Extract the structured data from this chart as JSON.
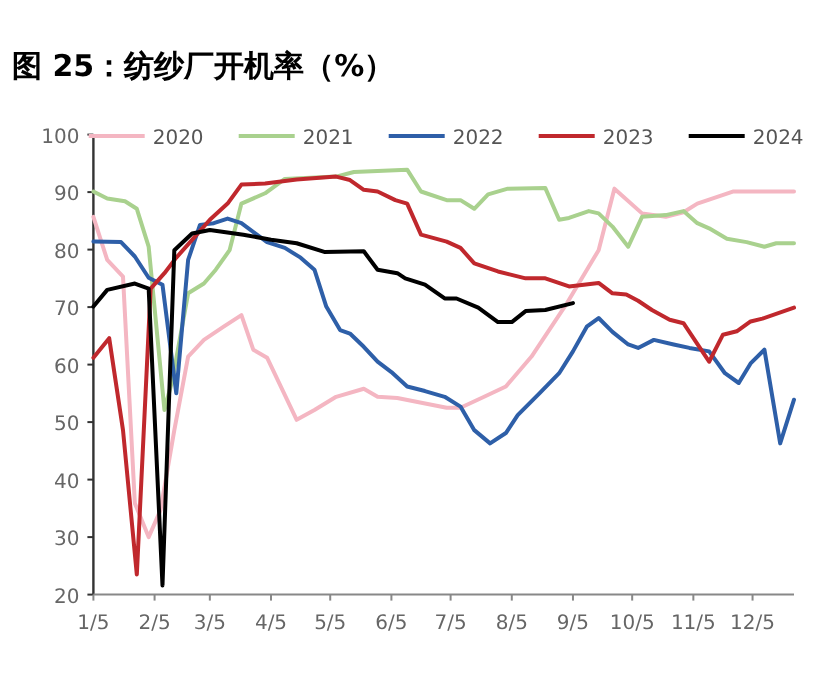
{
  "chart_data": {
    "type": "line",
    "title": "图 25：纺纱厂开机率（%）",
    "legend": "top",
    "grid": false,
    "marker": "none",
    "line_style": "solid",
    "xlim": [
      "--01-05",
      "--12-26"
    ],
    "xticks": [
      {
        "value": "--01-05",
        "label": "1/5"
      },
      {
        "value": "--02-05",
        "label": "2/5"
      },
      {
        "value": "--03-05",
        "label": "3/5"
      },
      {
        "value": "--04-05",
        "label": "4/5"
      },
      {
        "value": "--05-05",
        "label": "5/5"
      },
      {
        "value": "--06-05",
        "label": "6/5"
      },
      {
        "value": "--07-05",
        "label": "7/5"
      },
      {
        "value": "--08-05",
        "label": "8/5"
      },
      {
        "value": "--09-05",
        "label": "9/5"
      },
      {
        "value": "--10-05",
        "label": "10/5"
      },
      {
        "value": "--11-05",
        "label": "11/5"
      },
      {
        "value": "--12-05",
        "label": "12/5"
      }
    ],
    "ylim": [
      20,
      100
    ],
    "yticks": [
      20,
      30,
      40,
      50,
      60,
      70,
      80,
      90,
      100
    ],
    "series": [
      {
        "name": "2020",
        "color": "#f4b6c2",
        "x": [
          "--01-05",
          "--01-12",
          "--01-20",
          "--01-26",
          "--02-02",
          "--02-08",
          "--02-15",
          "--02-22",
          "--03-02",
          "--03-12",
          "--03-21",
          "--03-27",
          "--04-03",
          "--04-18",
          "--04-27",
          "--05-08",
          "--05-22",
          "--05-29",
          "--06-08",
          "--07-03",
          "--07-10",
          "--07-22",
          "--08-02",
          "--08-15",
          "--09-02",
          "--09-18",
          "--09-26",
          "--10-10",
          "--10-22",
          "--10-31",
          "--11-07",
          "--11-25",
          "--12-26"
        ],
        "values": [
          85.7,
          78.2,
          75.3,
          35.9,
          30,
          34.7,
          48.6,
          61.4,
          64.3,
          66.6,
          68.6,
          62.6,
          61.2,
          50.4,
          52.1,
          54.4,
          55.8,
          54.4,
          54.2,
          52.5,
          52.5,
          54.4,
          56.2,
          61.4,
          70.7,
          79.9,
          90.6,
          86.3,
          85.7,
          86.5,
          88,
          90.1,
          90.1
        ]
      },
      {
        "name": "2021",
        "color": "#a9d18e",
        "x": [
          "--01-05",
          "--01-12",
          "--01-21",
          "--01-27",
          "--02-02",
          "--02-10",
          "--02-14",
          "--02-22",
          "--03-02",
          "--03-08",
          "--03-15",
          "--03-21",
          "--04-02",
          "--04-12",
          "--05-08",
          "--05-17",
          "--06-13",
          "--06-20",
          "--07-03",
          "--07-10",
          "--07-17",
          "--07-24",
          "--08-03",
          "--08-22",
          "--08-29",
          "--09-03",
          "--09-13",
          "--09-18",
          "--09-25",
          "--10-03",
          "--10-10",
          "--10-22",
          "--10-31",
          "--11-07",
          "--11-13",
          "--11-22",
          "--12-02",
          "--12-11",
          "--12-17",
          "--12-26"
        ],
        "values": [
          90.1,
          88.9,
          88.4,
          87.1,
          80.5,
          52.1,
          57.3,
          72.4,
          74.1,
          76.5,
          79.9,
          88,
          89.8,
          92.3,
          92.7,
          93.5,
          93.9,
          90.1,
          88.6,
          88.6,
          87.1,
          89.6,
          90.6,
          90.7,
          85.2,
          85.5,
          86.7,
          86.3,
          84,
          80.5,
          85.7,
          86,
          86.7,
          84.6,
          83.7,
          81.9,
          81.3,
          80.5,
          81.1,
          81.1
        ]
      },
      {
        "name": "2022",
        "color": "#2e5fa8",
        "x": [
          "--01-05",
          "--01-19",
          "--01-26",
          "--02-02",
          "--02-09",
          "--02-16",
          "--02-22",
          "--02-28",
          "--03-07",
          "--03-14",
          "--03-21",
          "--04-03",
          "--04-12",
          "--04-20",
          "--04-27",
          "--05-03",
          "--05-10",
          "--05-15",
          "--05-22",
          "--05-29",
          "--06-05",
          "--06-13",
          "--06-22",
          "--07-02",
          "--07-10",
          "--07-17",
          "--07-25",
          "--08-02",
          "--08-08",
          "--08-19",
          "--08-29",
          "--09-05",
          "--09-12",
          "--09-18",
          "--09-25",
          "--10-03",
          "--10-08",
          "--10-16",
          "--10-26",
          "--11-03",
          "--11-13",
          "--11-21",
          "--11-28",
          "--12-04",
          "--12-11",
          "--12-19",
          "--12-26"
        ],
        "values": [
          81.4,
          81.3,
          78.8,
          75.1,
          73.9,
          55,
          78.2,
          84.3,
          84.6,
          85.4,
          84.6,
          81.3,
          80.3,
          78.6,
          76.5,
          70.1,
          66,
          65.4,
          63.1,
          60.5,
          58.7,
          56.2,
          55.4,
          54.4,
          52.7,
          48.6,
          46.3,
          48.1,
          51.2,
          55,
          58.5,
          62.3,
          66.6,
          68.1,
          65.7,
          63.5,
          62.9,
          64.3,
          63.5,
          62.9,
          62.3,
          58.5,
          56.8,
          60.2,
          62.6,
          46.3,
          53.9
        ]
      },
      {
        "name": "2023",
        "color": "#c0282d",
        "x": [
          "--01-05",
          "--01-13",
          "--01-20",
          "--01-27",
          "--02-03",
          "--02-10",
          "--02-16",
          "--02-24",
          "--03-05",
          "--03-14",
          "--03-21",
          "--04-02",
          "--04-18",
          "--05-08",
          "--05-15",
          "--05-22",
          "--05-29",
          "--06-07",
          "--06-13",
          "--06-20",
          "--07-03",
          "--07-10",
          "--07-17",
          "--07-29",
          "--08-12",
          "--08-22",
          "--09-03",
          "--09-18",
          "--09-25",
          "--10-02",
          "--10-08",
          "--10-15",
          "--10-24",
          "--10-31",
          "--11-08",
          "--11-13",
          "--11-20",
          "--11-27",
          "--12-04",
          "--12-10",
          "--12-26"
        ],
        "values": [
          61.2,
          64.6,
          48.6,
          23.5,
          73.2,
          75.9,
          78.6,
          81.7,
          85.2,
          88,
          91.3,
          91.5,
          92.2,
          92.7,
          92.1,
          90.4,
          90.1,
          88.6,
          88,
          82.6,
          81.4,
          80.3,
          77.6,
          76.2,
          75,
          75,
          73.6,
          74.2,
          72.4,
          72.2,
          71.1,
          69.5,
          67.8,
          67.2,
          63.1,
          60.5,
          65.2,
          65.8,
          67.5,
          68,
          69.9
        ]
      },
      {
        "name": "2024",
        "color": "#000000",
        "x": [
          "--01-05",
          "--01-12",
          "--01-26",
          "--02-02",
          "--02-09",
          "--02-15",
          "--02-24",
          "--03-05",
          "--03-22",
          "--04-05",
          "--04-18",
          "--05-02",
          "--05-22",
          "--05-29",
          "--06-08",
          "--06-12",
          "--06-22",
          "--07-02",
          "--07-08",
          "--07-19",
          "--07-29",
          "--08-05",
          "--08-12",
          "--08-22",
          "--09-05"
        ],
        "values": [
          70.1,
          73,
          74.1,
          73.2,
          21.6,
          79.9,
          82.8,
          83.4,
          82.6,
          81.7,
          81.1,
          79.6,
          79.7,
          76.5,
          75.9,
          75,
          73.9,
          71.5,
          71.5,
          69.9,
          67.4,
          67.4,
          69.3,
          69.5,
          70.7
        ]
      }
    ]
  }
}
